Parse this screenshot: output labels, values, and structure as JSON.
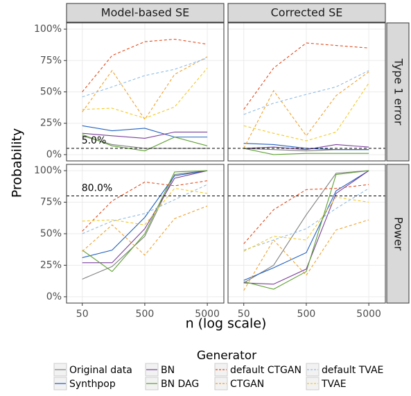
{
  "chart_data": {
    "type": "line",
    "x_label": "n (log scale)",
    "y_label": "Probability",
    "legend_title": "Generator",
    "log_x": true,
    "grid": true,
    "x": [
      50,
      150,
      500,
      1500,
      5000
    ],
    "xlim": [
      28,
      9200
    ],
    "xticks": [
      50,
      500,
      5000
    ],
    "ylim": [
      -5,
      105
    ],
    "yticks": [
      {
        "value": 0,
        "label": "0%"
      },
      {
        "value": 25,
        "label": "25%"
      },
      {
        "value": 50,
        "label": "50%"
      },
      {
        "value": 75,
        "label": "75%"
      },
      {
        "value": 100,
        "label": "100%"
      }
    ],
    "columns": [
      "Model-based SE",
      "Corrected SE"
    ],
    "rows": [
      {
        "name": "Type 1 error",
        "hline": 5,
        "hline_label": "5.0%"
      },
      {
        "name": "Power",
        "hline": 80,
        "hline_label": "80.0%"
      }
    ],
    "series": [
      {
        "name": "Original data",
        "color": "#7f7f7f",
        "dashed": false
      },
      {
        "name": "Synthpop",
        "color": "#2060c0",
        "dashed": false
      },
      {
        "name": "BN",
        "color": "#7a3d9a",
        "dashed": false
      },
      {
        "name": "BN DAG",
        "color": "#5ca030",
        "dashed": false
      },
      {
        "name": "default CTGAN",
        "color": "#e04a1c",
        "dashed": true
      },
      {
        "name": "CTGAN",
        "color": "#f0a028",
        "dashed": true
      },
      {
        "name": "default TVAE",
        "color": "#8ebce6",
        "dashed": true
      },
      {
        "name": "TVAE",
        "color": "#f5c81e",
        "dashed": true
      }
    ],
    "panels": [
      {
        "column": 0,
        "row": 0,
        "values": [
          [
            15,
            8,
            5,
            5,
            5
          ],
          [
            23,
            19,
            21,
            14,
            14
          ],
          [
            17,
            15,
            13,
            18,
            18
          ],
          [
            16,
            7,
            3,
            14,
            7
          ],
          [
            50,
            79,
            90,
            92,
            88
          ],
          [
            34,
            67,
            28,
            64,
            78
          ],
          [
            46,
            54,
            63,
            68,
            77
          ],
          [
            36,
            37,
            29,
            38,
            69
          ]
        ]
      },
      {
        "column": 1,
        "row": 0,
        "values": [
          [
            5,
            4,
            3,
            4,
            4
          ],
          [
            9,
            8,
            5,
            4,
            4
          ],
          [
            5,
            6,
            4,
            8,
            6
          ],
          [
            5,
            0,
            1,
            1,
            1
          ],
          [
            36,
            69,
            89,
            87,
            85
          ],
          [
            5,
            51,
            15,
            47,
            66
          ],
          [
            32,
            41,
            48,
            54,
            67
          ],
          [
            23,
            17,
            11,
            18,
            57
          ]
        ]
      },
      {
        "column": 0,
        "row": 1,
        "values": [
          [
            14,
            24,
            48,
            97,
            100
          ],
          [
            31,
            37,
            63,
            96,
            100
          ],
          [
            27,
            27,
            54,
            94,
            100
          ],
          [
            37,
            20,
            50,
            99,
            100
          ],
          [
            52,
            76,
            91,
            88,
            92
          ],
          [
            36,
            57,
            33,
            62,
            72
          ],
          [
            50,
            60,
            66,
            77,
            89
          ],
          [
            60,
            61,
            57,
            86,
            82
          ]
        ]
      },
      {
        "column": 1,
        "row": 1,
        "values": [
          [
            11,
            25,
            65,
            98,
            100
          ],
          [
            13,
            23,
            35,
            84,
            100
          ],
          [
            11,
            10,
            22,
            82,
            100
          ],
          [
            12,
            6,
            20,
            97,
            100
          ],
          [
            42,
            69,
            85,
            86,
            89
          ],
          [
            5,
            45,
            17,
            53,
            61
          ],
          [
            37,
            45,
            54,
            70,
            86
          ],
          [
            36,
            48,
            45,
            79,
            75
          ]
        ]
      }
    ]
  }
}
